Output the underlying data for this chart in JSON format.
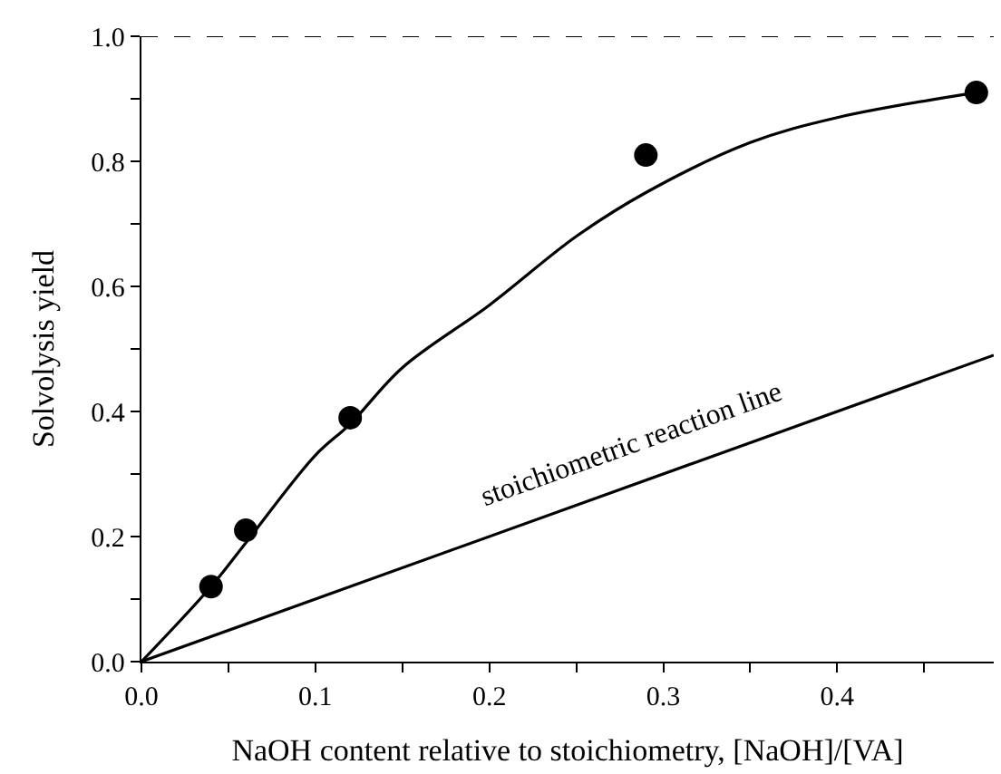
{
  "chart_data": {
    "type": "scatter",
    "xlabel": "NaOH content relative to stoichiometry, [NaOH]/[VA]",
    "ylabel": "Solvolysis yield",
    "xlim": [
      0,
      0.49
    ],
    "ylim": [
      0,
      1.0
    ],
    "xticks": [
      "0.0",
      0.1,
      0.2,
      0.3,
      0.4,
      {
        "value": 0.05,
        "label": null
      },
      {
        "value": 0.15,
        "label": null
      },
      {
        "value": 0.25,
        "label": null
      },
      {
        "value": 0.35,
        "label": null
      },
      {
        "value": 0.45,
        "label": null
      }
    ],
    "yticks": [
      "0.0",
      0.2,
      0.4,
      0.6,
      0.8,
      "1.0",
      {
        "value": 0.1,
        "label": null
      },
      {
        "value": 0.3,
        "label": null
      },
      {
        "value": 0.5,
        "label": null
      },
      {
        "value": 0.7,
        "label": null
      },
      {
        "value": 0.9,
        "label": null
      }
    ],
    "legend": false,
    "series": [
      {
        "marker": "circle",
        "color": "#000000",
        "x": [
          0.04,
          0.06,
          0.12,
          0.29,
          0.48
        ],
        "values": [
          0.12,
          0.21,
          0.39,
          0.81,
          0.91
        ]
      },
      {
        "type": "line",
        "marker": "none",
        "line_style": "solid",
        "color": "#000000",
        "x": [
          0,
          0.04,
          0.06,
          0.1,
          0.12,
          0.15,
          0.2,
          0.25,
          0.29,
          0.35,
          0.4,
          0.48
        ],
        "values": [
          0,
          0.12,
          0.19,
          0.33,
          0.38,
          0.47,
          0.57,
          0.68,
          0.75,
          0.83,
          0.87,
          0.91
        ]
      },
      {
        "type": "line",
        "marker": "none",
        "line_style": "solid",
        "color": "#000000",
        "x": [
          0,
          0.49
        ],
        "values": [
          0,
          0.49
        ]
      }
    ],
    "ref_lines": [
      {
        "axis": "y",
        "value": 1.0,
        "label": null,
        "line_style": "dashed",
        "color": "#000000"
      }
    ],
    "annotations": [
      "stoichiometric reaction line"
    ]
  }
}
